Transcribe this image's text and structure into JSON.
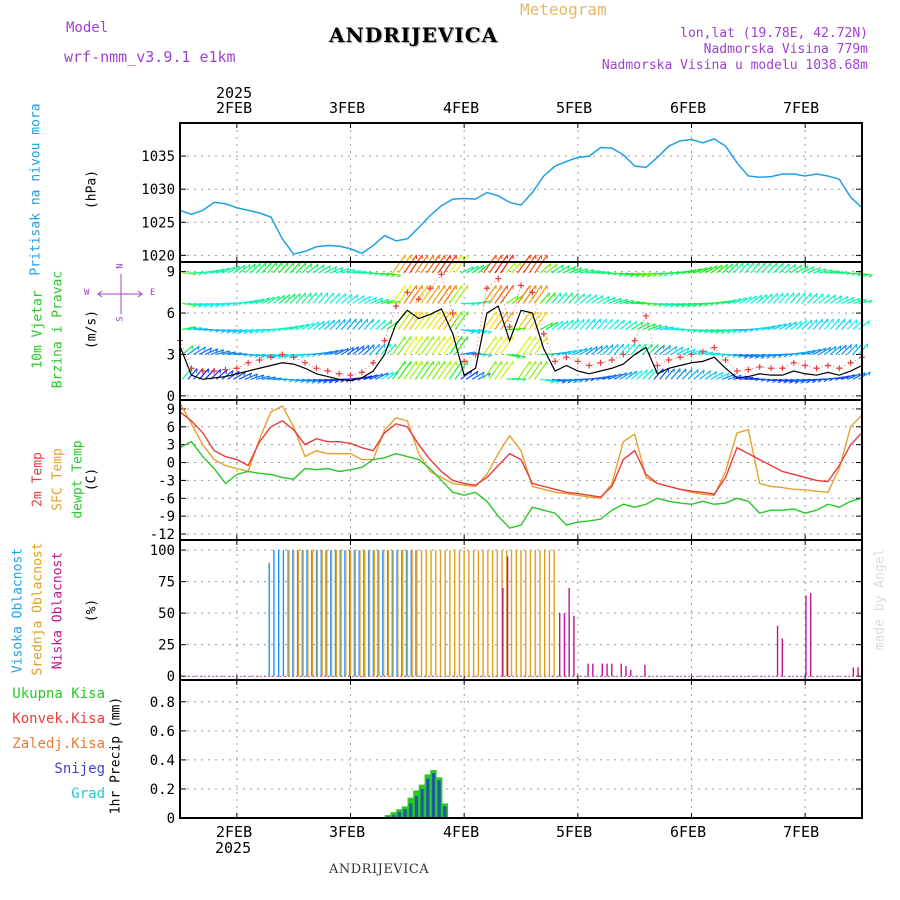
{
  "header": {
    "model_label": "Model",
    "model_name": "wrf-nmm_v3.9.1  e1km",
    "station": "ANDRIJEVICA",
    "product": "Meteogram",
    "coords": "lon,lat (19.78E, 42.72N)",
    "elevation": "Nadmorska Visina 779m",
    "model_elevation": "Nadmorska Visina u modelu 1038.68m"
  },
  "time_axis": {
    "year": "2025",
    "days": [
      "2FEB",
      "3FEB",
      "4FEB",
      "5FEB",
      "6FEB",
      "7FEB"
    ]
  },
  "footer": {
    "station": "ANDRIJEVICA",
    "credit": "made by Angel"
  },
  "colors": {
    "pressure": "#1ea0e6",
    "t2m": "#e83c3c",
    "sfc": "#e8a030",
    "dew": "#28c828",
    "wind_speed": "#000000",
    "gust": "#e83c3c",
    "high": "#1e90ff",
    "mid": "#e0a020",
    "low": "#c0148c",
    "total_precip": "#28c828",
    "conv_precip": "#1e5aa0"
  },
  "chart_data": [
    {
      "type": "line",
      "ylabel": "(hPa)",
      "side_labels": [
        "Pritisak na nivou mora"
      ],
      "yticks": [
        1020,
        1025,
        1030,
        1035
      ],
      "ylim": [
        1019,
        1040
      ],
      "x": [
        1.5,
        1.6,
        1.7,
        1.8,
        1.9,
        2.0,
        2.1,
        2.2,
        2.3,
        2.4,
        2.5,
        2.6,
        2.7,
        2.8,
        2.9,
        3.0,
        3.1,
        3.2,
        3.3,
        3.4,
        3.5,
        3.6,
        3.7,
        3.8,
        3.9,
        4.0,
        4.1,
        4.2,
        4.3,
        4.4,
        4.5,
        4.6,
        4.7,
        4.8,
        4.9,
        5.0,
        5.1,
        5.2,
        5.3,
        5.4,
        5.5,
        5.6,
        5.7,
        5.8,
        5.9,
        6.0,
        6.1,
        6.2,
        6.3,
        6.4,
        6.5,
        6.6,
        6.7,
        6.8,
        6.9,
        7.0,
        7.1,
        7.2,
        7.3,
        7.4,
        7.5
      ],
      "series": [
        {
          "values": [
            1026.8,
            1026.2,
            1026.8,
            1028.0,
            1027.8,
            1027.2,
            1026.8,
            1026.4,
            1025.8,
            1022.5,
            1020.2,
            1020.6,
            1021.3,
            1021.5,
            1021.4,
            1021.0,
            1020.3,
            1021.5,
            1023.0,
            1022.2,
            1022.5,
            1024.2,
            1026.0,
            1027.5,
            1028.5,
            1028.6,
            1028.5,
            1029.5,
            1029.0,
            1028.0,
            1027.6,
            1029.5,
            1032.0,
            1033.5,
            1034.2,
            1034.8,
            1035.0,
            1036.3,
            1036.2,
            1035.2,
            1033.5,
            1033.3,
            1034.8,
            1036.5,
            1037.3,
            1037.5,
            1037.0,
            1037.6,
            1036.5,
            1034.0,
            1032.0,
            1031.8,
            1031.9,
            1032.3,
            1032.3,
            1032.0,
            1032.3,
            1032.0,
            1031.5,
            1028.8,
            1027.2
          ]
        }
      ]
    },
    {
      "type": "line",
      "ylabel": "(m/s)",
      "side_labels": [
        "10m Vjetar",
        "Brzina i Pravac"
      ],
      "compass": [
        "N",
        "E",
        "S",
        "W"
      ],
      "yticks": [
        0,
        3,
        6,
        9
      ],
      "ylim": [
        -0.3,
        9.7
      ],
      "x": [
        1.5,
        1.6,
        1.7,
        1.8,
        1.9,
        2.0,
        2.1,
        2.2,
        2.3,
        2.4,
        2.5,
        2.6,
        2.7,
        2.8,
        2.9,
        3.0,
        3.1,
        3.2,
        3.3,
        3.4,
        3.5,
        3.6,
        3.7,
        3.8,
        3.9,
        4.0,
        4.1,
        4.2,
        4.3,
        4.4,
        4.5,
        4.6,
        4.7,
        4.8,
        4.9,
        5.0,
        5.1,
        5.2,
        5.3,
        5.4,
        5.5,
        5.6,
        5.7,
        5.8,
        5.9,
        6.0,
        6.1,
        6.2,
        6.3,
        6.4,
        6.5,
        6.6,
        6.7,
        6.8,
        6.9,
        7.0,
        7.1,
        7.2,
        7.3,
        7.4,
        7.5
      ],
      "series": [
        {
          "values": [
            3.6,
            1.5,
            1.2,
            1.3,
            1.4,
            1.6,
            1.8,
            2.0,
            2.2,
            2.4,
            2.3,
            2.0,
            1.6,
            1.4,
            1.2,
            1.1,
            1.3,
            1.8,
            3.0,
            5.2,
            6.2,
            5.6,
            5.9,
            6.3,
            4.5,
            1.5,
            2.0,
            6.0,
            6.5,
            4.0,
            6.2,
            6.0,
            3.4,
            1.8,
            2.2,
            1.8,
            1.6,
            1.8,
            2.0,
            2.3,
            3.0,
            3.5,
            1.6,
            2.0,
            2.2,
            2.4,
            2.5,
            2.8,
            2.0,
            1.3,
            1.4,
            1.6,
            1.5,
            1.5,
            1.8,
            1.6,
            1.5,
            1.7,
            1.5,
            1.8,
            2.2
          ]
        },
        {
          "values": [
            4.0,
            2.0,
            1.8,
            1.8,
            1.9,
            2.0,
            2.4,
            2.6,
            2.8,
            3.0,
            2.8,
            2.4,
            2.0,
            1.8,
            1.6,
            1.5,
            1.7,
            2.4,
            4.0,
            6.5,
            7.5,
            7.0,
            7.8,
            8.8,
            6.0,
            2.5,
            3.0,
            7.8,
            8.5,
            5.0,
            8.0,
            7.5,
            4.5,
            2.5,
            2.8,
            2.5,
            2.2,
            2.4,
            2.6,
            3.0,
            4.0,
            5.8,
            2.2,
            2.6,
            2.8,
            3.0,
            3.2,
            3.5,
            2.6,
            1.8,
            1.9,
            2.1,
            2.0,
            2.0,
            2.4,
            2.2,
            2.0,
            2.2,
            2.0,
            2.4,
            2.8
          ]
        }
      ],
      "barb_rows": [
        1.2,
        3.0,
        4.8,
        6.7,
        8.9
      ]
    },
    {
      "type": "line",
      "ylabel": "(C)",
      "side_labels": [
        "2m Temp",
        "SFC Temp",
        "dewpt Temp"
      ],
      "yticks": [
        -12,
        -9,
        -6,
        -3,
        0,
        3,
        6,
        9
      ],
      "ylim": [
        -13,
        10.5
      ],
      "x": [
        1.5,
        1.6,
        1.7,
        1.8,
        1.9,
        2.0,
        2.1,
        2.2,
        2.3,
        2.4,
        2.5,
        2.6,
        2.7,
        2.8,
        2.9,
        3.0,
        3.1,
        3.2,
        3.3,
        3.4,
        3.5,
        3.6,
        3.7,
        3.8,
        3.9,
        4.0,
        4.1,
        4.2,
        4.3,
        4.4,
        4.5,
        4.6,
        4.7,
        4.8,
        4.9,
        5.0,
        5.1,
        5.2,
        5.3,
        5.4,
        5.5,
        5.6,
        5.7,
        5.8,
        5.9,
        6.0,
        6.1,
        6.2,
        6.3,
        6.4,
        6.5,
        6.6,
        6.7,
        6.8,
        6.9,
        7.0,
        7.1,
        7.2,
        7.3,
        7.4,
        7.5
      ],
      "series": [
        {
          "values": [
            8.5,
            7.0,
            5.0,
            2.0,
            1.0,
            0.5,
            -0.5,
            3.5,
            6.0,
            7.0,
            5.5,
            3.0,
            4.0,
            3.5,
            3.5,
            3.2,
            2.5,
            2.0,
            5.0,
            6.5,
            6.0,
            3.0,
            0.5,
            -1.5,
            -3.0,
            -3.5,
            -3.8,
            -2.5,
            -0.5,
            1.5,
            0.5,
            -3.5,
            -4.0,
            -4.5,
            -5.0,
            -5.2,
            -5.5,
            -5.8,
            -4.0,
            0.5,
            2.0,
            -2.0,
            -3.5,
            -4.0,
            -4.5,
            -4.8,
            -5.0,
            -5.3,
            -2.5,
            2.5,
            1.5,
            0.5,
            -0.5,
            -1.5,
            -2.0,
            -2.5,
            -3.0,
            -3.2,
            -0.5,
            3.0,
            5.0
          ]
        },
        {
          "values": [
            10.0,
            6.5,
            3.0,
            0.5,
            -0.5,
            -1.0,
            -1.5,
            4.0,
            8.5,
            9.5,
            6.0,
            1.0,
            2.0,
            1.5,
            1.5,
            1.5,
            0.5,
            0.5,
            5.5,
            7.5,
            7.0,
            1.5,
            -1.5,
            -2.5,
            -3.5,
            -3.8,
            -4.0,
            -2.0,
            1.5,
            4.5,
            2.0,
            -4.0,
            -4.5,
            -5.0,
            -5.2,
            -5.5,
            -5.8,
            -6.0,
            -3.5,
            3.5,
            4.8,
            -2.5,
            -3.5,
            -4.0,
            -4.5,
            -5.0,
            -5.3,
            -5.5,
            -1.5,
            5.0,
            5.5,
            -3.5,
            -4.0,
            -4.2,
            -4.5,
            -4.6,
            -4.8,
            -5.0,
            -1.0,
            6.0,
            8.0
          ]
        },
        {
          "values": [
            2.5,
            3.5,
            1.0,
            -1.0,
            -3.5,
            -2.0,
            -1.5,
            -1.8,
            -2.0,
            -2.5,
            -2.8,
            -1.0,
            -1.2,
            -1.0,
            -1.5,
            -1.2,
            -0.8,
            0.5,
            0.8,
            1.5,
            1.0,
            0.5,
            -1.0,
            -3.0,
            -5.0,
            -5.5,
            -5.0,
            -6.5,
            -9.0,
            -11.0,
            -10.5,
            -7.5,
            -8.0,
            -8.5,
            -10.5,
            -10.0,
            -9.8,
            -9.5,
            -8.0,
            -7.0,
            -7.5,
            -7.0,
            -6.0,
            -6.5,
            -6.8,
            -7.0,
            -6.5,
            -7.0,
            -6.8,
            -6.0,
            -6.5,
            -8.5,
            -8.0,
            -8.0,
            -7.8,
            -8.5,
            -8.0,
            -7.0,
            -7.5,
            -6.5,
            -6.0
          ]
        }
      ]
    },
    {
      "type": "bar",
      "ylabel": "(%)",
      "side_labels": [
        "Visoka Oblacnost",
        "Srednja Oblacnost",
        "Niska Oblacnost"
      ],
      "yticks": [
        0,
        25,
        50,
        75,
        100
      ],
      "ylim": [
        -3,
        108
      ],
      "hours_start": 1.5,
      "hours": 144,
      "series": [
        {
          "values": [
            0,
            0,
            0,
            0,
            0,
            0,
            0,
            0,
            0,
            0,
            0,
            0,
            0,
            0,
            0,
            0,
            0,
            0,
            0,
            90,
            100,
            100,
            100,
            100,
            100,
            100,
            100,
            100,
            100,
            100,
            100,
            100,
            100,
            100,
            100,
            100,
            100,
            100,
            100,
            100,
            100,
            100,
            100,
            100,
            100,
            100,
            100,
            100,
            100,
            100,
            100,
            0,
            0,
            0,
            0,
            0,
            0,
            0,
            0,
            0,
            0,
            0,
            0,
            0,
            0,
            0,
            0,
            0,
            0,
            0,
            0,
            0,
            0,
            0,
            0,
            0,
            0,
            0,
            0,
            0,
            0,
            0,
            0,
            0,
            0,
            0,
            0,
            0,
            0,
            0,
            0,
            0,
            0,
            0,
            0,
            0,
            0,
            0,
            0,
            0,
            0,
            0,
            0,
            0,
            0,
            0,
            0,
            0,
            0,
            0,
            0,
            0,
            0,
            0,
            0,
            0,
            0,
            0,
            0,
            0,
            0,
            0,
            0,
            0,
            0,
            0,
            0,
            0,
            0,
            0,
            0,
            0,
            0,
            0,
            0,
            0,
            0,
            0,
            0,
            0,
            0,
            0,
            0,
            0
          ]
        },
        {
          "values": [
            0,
            0,
            0,
            0,
            0,
            0,
            0,
            0,
            0,
            0,
            0,
            0,
            0,
            0,
            0,
            0,
            0,
            0,
            0,
            0,
            0,
            0,
            0,
            100,
            100,
            100,
            100,
            100,
            100,
            100,
            100,
            100,
            100,
            100,
            100,
            100,
            100,
            100,
            100,
            100,
            100,
            100,
            100,
            100,
            100,
            100,
            100,
            100,
            100,
            100,
            100,
            100,
            100,
            100,
            100,
            100,
            100,
            100,
            100,
            100,
            100,
            100,
            100,
            100,
            100,
            100,
            100,
            100,
            100,
            100,
            100,
            100,
            100,
            100,
            100,
            100,
            100,
            100,
            100,
            100,
            0,
            0,
            0,
            0,
            0,
            0,
            0,
            0,
            0,
            0,
            0,
            0,
            0,
            0,
            0,
            0,
            0,
            0,
            0,
            0,
            0,
            0,
            0,
            0,
            0,
            0,
            0,
            0,
            0,
            0,
            0,
            0,
            0,
            0,
            0,
            0,
            0,
            0,
            0,
            0,
            0,
            0,
            0,
            0,
            0,
            0,
            0,
            0,
            0,
            0,
            0,
            0,
            0,
            0,
            0,
            0,
            0,
            0,
            0,
            0,
            0,
            0,
            0,
            0
          ]
        },
        {
          "values": [
            0,
            0,
            0,
            0,
            0,
            0,
            0,
            0,
            0,
            0,
            0,
            0,
            0,
            0,
            0,
            0,
            0,
            0,
            0,
            0,
            0,
            0,
            0,
            0,
            0,
            0,
            0,
            0,
            0,
            0,
            0,
            0,
            0,
            0,
            0,
            0,
            0,
            0,
            0,
            0,
            0,
            0,
            0,
            0,
            0,
            0,
            0,
            0,
            0,
            0,
            0,
            0,
            0,
            0,
            0,
            0,
            0,
            0,
            0,
            0,
            0,
            0,
            0,
            0,
            0,
            0,
            0,
            0,
            70,
            95,
            0,
            0,
            0,
            0,
            0,
            0,
            0,
            0,
            0,
            0,
            50,
            50,
            70,
            48,
            0,
            0,
            10,
            10,
            0,
            10,
            10,
            10,
            0,
            10,
            8,
            5,
            0,
            0,
            9,
            0,
            0,
            0,
            0,
            0,
            0,
            0,
            0,
            0,
            0,
            0,
            0,
            0,
            0,
            0,
            0,
            0,
            0,
            0,
            0,
            0,
            0,
            0,
            0,
            0,
            0,
            0,
            40,
            30,
            0,
            0,
            0,
            0,
            64,
            66,
            0,
            0,
            0,
            0,
            0,
            0,
            0,
            0,
            7,
            7
          ]
        }
      ]
    },
    {
      "type": "bar",
      "ylabel": "1hr Precip (mm)",
      "side_labels": [
        "Ukupna Kisa",
        "Konvek.Kisa",
        "Zaledj.Kisa",
        "Snijeg",
        "Grad"
      ],
      "yticks": [
        0,
        0.2,
        0.4,
        0.6,
        0.8
      ],
      "ylim": [
        0,
        0.95
      ],
      "x": [
        3.33,
        3.38,
        3.43,
        3.48,
        3.53,
        3.58,
        3.63,
        3.68,
        3.73,
        3.78,
        3.83
      ],
      "series": [
        {
          "name": "Ukupna Kisa",
          "values": [
            0.02,
            0.04,
            0.06,
            0.08,
            0.14,
            0.19,
            0.23,
            0.3,
            0.33,
            0.28,
            0.1
          ]
        },
        {
          "name": "Konvek.Kisa",
          "values": [
            0.01,
            0.02,
            0.04,
            0.06,
            0.1,
            0.15,
            0.2,
            0.27,
            0.31,
            0.26,
            0.08
          ]
        }
      ]
    }
  ]
}
